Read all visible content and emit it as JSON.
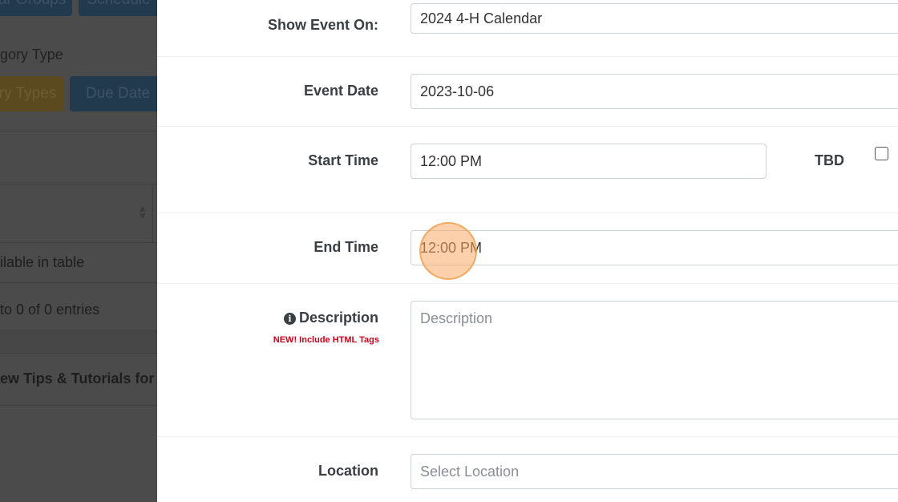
{
  "background": {
    "buttons": [
      "ar Groups",
      "Schedule",
      "ry Types",
      "Due Date"
    ],
    "category_type": "gory Type",
    "empty_table": "ilable in table",
    "entries": "to 0 of 0 entries",
    "tips": "ew Tips & Tutorials for Ev"
  },
  "form": {
    "show_event_on": {
      "label": "Show Event On:",
      "value": "2024 4-H Calendar"
    },
    "event_date": {
      "label": "Event Date",
      "value": "2023-10-06"
    },
    "start_time": {
      "label": "Start Time",
      "value": "12:00 PM",
      "tbd_label": "TBD",
      "tbd_checked": false
    },
    "end_time": {
      "label": "End Time",
      "value": "12:00 PM"
    },
    "description": {
      "label": "Description",
      "note": "NEW! Include HTML Tags",
      "placeholder": "Description"
    },
    "location": {
      "label": "Location",
      "placeholder": "Select Location"
    }
  },
  "colors": {
    "note": "#d0021b",
    "overlay": "#4b4b4b"
  }
}
